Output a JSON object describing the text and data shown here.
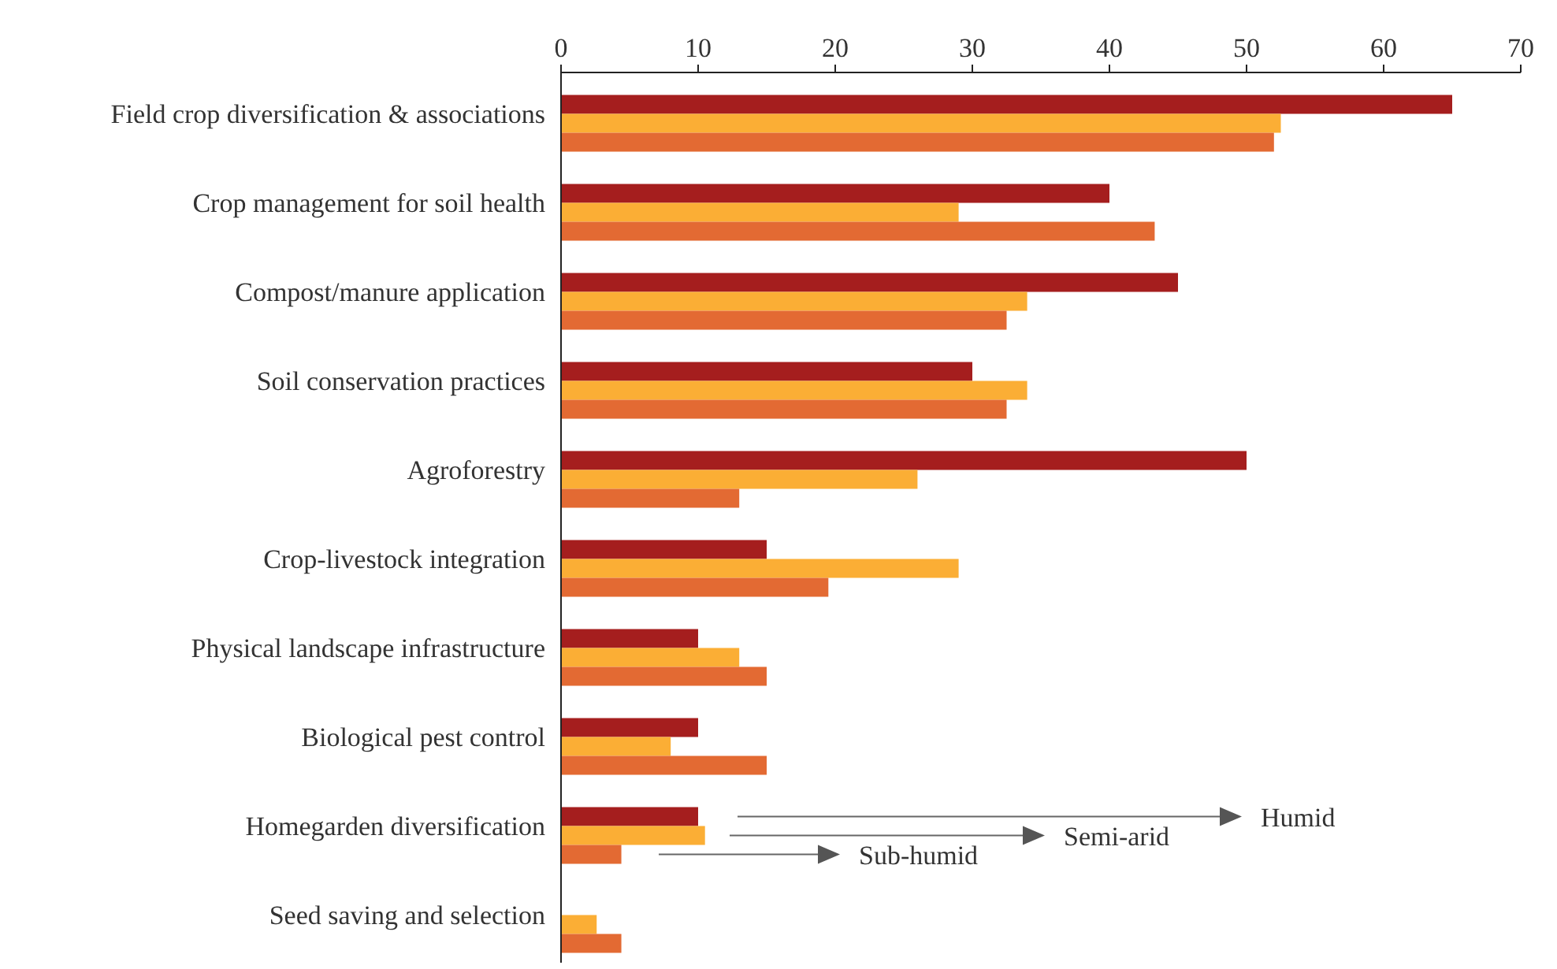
{
  "chart_data": {
    "type": "bar",
    "orientation": "horizontal",
    "categories": [
      "Field crop diversification & associations",
      "Crop management for soil health",
      "Compost/manure application",
      "Soil conservation practices",
      "Agroforestry ",
      "Crop-livestock integration",
      "Physical landscape infrastructure",
      "Biological pest control",
      "Homegarden diversification",
      "Seed saving and selection"
    ],
    "series": [
      {
        "name": "Humid",
        "color": "#a51e1e",
        "values": [
          65,
          40,
          45,
          30,
          50,
          15,
          10,
          10,
          10,
          null
        ]
      },
      {
        "name": "Semi-arid",
        "color": "#fbae35",
        "values": [
          52.5,
          29,
          34,
          34,
          26,
          29,
          13,
          8,
          10.5,
          2.6
        ]
      },
      {
        "name": "Sub-humid",
        "color": "#e36a33",
        "values": [
          52,
          43.3,
          32.5,
          32.5,
          13,
          19.5,
          15,
          15,
          4.4,
          4.4
        ]
      }
    ],
    "xlim": [
      0,
      70
    ],
    "xticks": [
      0,
      10,
      20,
      30,
      40,
      50,
      60,
      70
    ],
    "grid": false,
    "legend": false
  }
}
